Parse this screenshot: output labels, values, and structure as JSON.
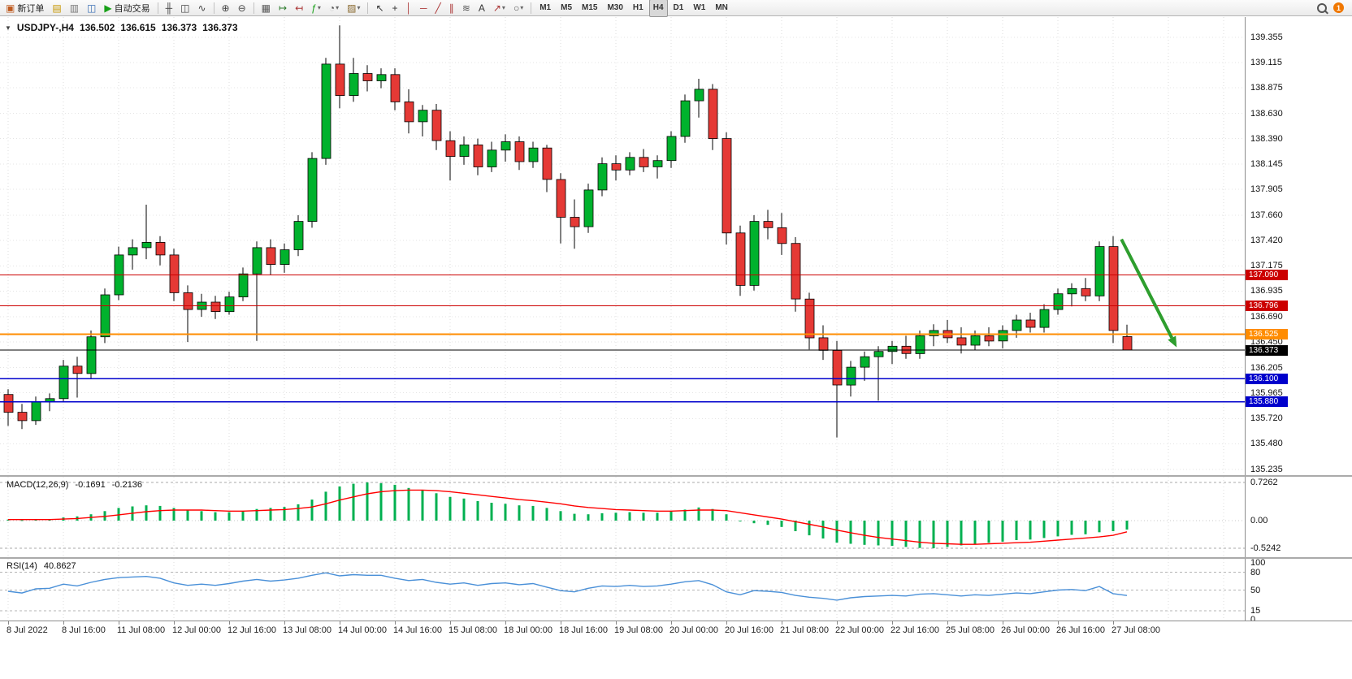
{
  "toolbar": {
    "notification_count": "1",
    "groups": [
      {
        "name": "standard",
        "items": [
          {
            "name": "new-order-button",
            "icon": "new-order-icon",
            "glyph": "▣",
            "color": "#bf5b20",
            "label": "新订单"
          },
          {
            "name": "chart-window-button",
            "icon": "chart-window-icon",
            "glyph": "▤",
            "color": "#c79600"
          },
          {
            "name": "profiles-button",
            "icon": "profiles-icon",
            "glyph": "▥",
            "color": "#7a7a7a"
          },
          {
            "name": "market-watch-button",
            "icon": "market-watch-icon",
            "glyph": "◫",
            "color": "#3b6fb5"
          },
          {
            "name": "auto-trading-button",
            "icon": "auto-trading-play-icon",
            "glyph": "▶",
            "color": "#18a018",
            "label": "自动交易"
          }
        ]
      },
      {
        "name": "chart-types",
        "items": [
          {
            "name": "bar-chart-button",
            "icon": "bar-chart-icon",
            "glyph": "╫",
            "color": "#444444"
          },
          {
            "name": "candlestick-chart-button",
            "icon": "candlestick-icon",
            "glyph": "◫",
            "color": "#444444"
          },
          {
            "name": "line-chart-button",
            "icon": "line-chart-icon",
            "glyph": "∿",
            "color": "#444444"
          }
        ]
      },
      {
        "name": "zoom",
        "items": [
          {
            "name": "zoom-in-button",
            "icon": "zoom-in-icon",
            "glyph": "⊕",
            "color": "#444444"
          },
          {
            "name": "zoom-out-button",
            "icon": "zoom-out-icon",
            "glyph": "⊖",
            "color": "#444444"
          }
        ]
      },
      {
        "name": "chart-tools",
        "items": [
          {
            "name": "tile-windows-button",
            "icon": "tile-windows-icon",
            "glyph": "▦",
            "color": "#555555"
          },
          {
            "name": "auto-scroll-button",
            "icon": "auto-scroll-icon",
            "glyph": "↦",
            "color": "#2a7a2a"
          },
          {
            "name": "chart-shift-button",
            "icon": "chart-shift-icon",
            "glyph": "↤",
            "color": "#aa3333"
          },
          {
            "name": "indicators-button",
            "icon": "indicators-icon",
            "glyph": "ƒ",
            "color": "#18a018",
            "dropdown": true
          },
          {
            "name": "periods-button",
            "icon": "periods-icon",
            "glyph": "◔",
            "color": "#555555",
            "dropdown": true
          },
          {
            "name": "templates-button",
            "icon": "templates-icon",
            "glyph": "▨",
            "color": "#8a6a30",
            "dropdown": true
          }
        ]
      },
      {
        "name": "drawing-tools",
        "items": [
          {
            "name": "cursor-button",
            "icon": "cursor-icon",
            "glyph": "↖",
            "color": "#333333"
          },
          {
            "name": "crosshair-button",
            "icon": "crosshair-icon",
            "glyph": "+",
            "color": "#333333"
          },
          {
            "name": "vertical-line-button",
            "icon": "vertical-line-icon",
            "glyph": "│",
            "color": "#aa3333"
          },
          {
            "name": "horizontal-line-button",
            "icon": "horizontal-line-icon",
            "glyph": "─",
            "color": "#aa3333"
          },
          {
            "name": "trendline-button",
            "icon": "trendline-icon",
            "glyph": "╱",
            "color": "#aa3333"
          },
          {
            "name": "channel-button",
            "icon": "channel-icon",
            "glyph": "∥",
            "color": "#aa3333"
          },
          {
            "name": "fibonacci-button",
            "icon": "fibonacci-icon",
            "glyph": "≋",
            "color": "#555555"
          },
          {
            "name": "text-button",
            "icon": "text-icon",
            "glyph": "A",
            "color": "#333333"
          },
          {
            "name": "arrows-button",
            "icon": "arrows-icon",
            "glyph": "↗",
            "color": "#aa3333",
            "dropdown": true
          },
          {
            "name": "shapes-button",
            "icon": "shapes-icon",
            "glyph": "○",
            "color": "#555555",
            "dropdown": true
          }
        ]
      },
      {
        "name": "timeframes",
        "items": [
          {
            "name": "timeframe-m1-button",
            "tf": true,
            "label": "M1"
          },
          {
            "name": "timeframe-m5-button",
            "tf": true,
            "label": "M5"
          },
          {
            "name": "timeframe-m15-button",
            "tf": true,
            "label": "M15"
          },
          {
            "name": "timeframe-m30-button",
            "tf": true,
            "label": "M30"
          },
          {
            "name": "timeframe-h1-button",
            "tf": true,
            "label": "H1"
          },
          {
            "name": "timeframe-h4-button",
            "tf": true,
            "label": "H4",
            "active": true
          },
          {
            "name": "timeframe-d1-button",
            "tf": true,
            "label": "D1"
          },
          {
            "name": "timeframe-w1-button",
            "tf": true,
            "label": "W1"
          },
          {
            "name": "timeframe-mn-button",
            "tf": true,
            "label": "MN"
          }
        ]
      }
    ]
  },
  "chart_header": {
    "collapse_icon": "▼",
    "symbol_period": "USDJPY-,H4",
    "open": "136.502",
    "high": "136.615",
    "low": "136.373",
    "close": "136.373"
  },
  "chart_data": {
    "type": "candlestick",
    "symbol": "USDJPY-",
    "timeframe": "H4",
    "grid": true,
    "ylim": [
      135.235,
      139.355
    ],
    "price_ticks": [
      139.355,
      139.115,
      138.875,
      138.63,
      138.39,
      138.145,
      137.905,
      137.66,
      137.42,
      137.175,
      136.935,
      136.69,
      136.45,
      136.205,
      135.965,
      135.72,
      135.48,
      135.235
    ],
    "time_labels": [
      "8 Jul 2022",
      "8 Jul 16:00",
      "11 Jul 08:00",
      "12 Jul 00:00",
      "12 Jul 16:00",
      "13 Jul 08:00",
      "14 Jul 00:00",
      "14 Jul 16:00",
      "15 Jul 08:00",
      "18 Jul 00:00",
      "18 Jul 16:00",
      "19 Jul 08:00",
      "20 Jul 00:00",
      "20 Jul 16:00",
      "21 Jul 08:00",
      "22 Jul 00:00",
      "22 Jul 16:00",
      "25 Jul 08:00",
      "26 Jul 00:00",
      "26 Jul 16:00",
      "27 Jul 08:00"
    ],
    "bars_per_label": 4,
    "colors": {
      "up": "#00b22d",
      "down": "#e53935",
      "wick": "#000000"
    },
    "ohlc": [
      [
        135.95,
        136.0,
        135.65,
        135.78
      ],
      [
        135.78,
        135.86,
        135.62,
        135.7
      ],
      [
        135.7,
        135.93,
        135.66,
        135.88
      ],
      [
        135.88,
        135.96,
        135.79,
        135.91
      ],
      [
        135.91,
        136.28,
        135.88,
        136.22
      ],
      [
        136.22,
        136.31,
        135.92,
        136.15
      ],
      [
        136.15,
        136.56,
        136.1,
        136.5
      ],
      [
        136.5,
        136.96,
        136.44,
        136.9
      ],
      [
        136.9,
        137.36,
        136.85,
        137.28
      ],
      [
        137.28,
        137.43,
        137.14,
        137.35
      ],
      [
        137.35,
        137.76,
        137.24,
        137.4
      ],
      [
        137.4,
        137.46,
        137.18,
        137.28
      ],
      [
        137.28,
        137.34,
        136.84,
        136.92
      ],
      [
        136.92,
        136.99,
        136.45,
        136.76
      ],
      [
        136.76,
        136.91,
        136.69,
        136.83
      ],
      [
        136.83,
        136.89,
        136.67,
        136.74
      ],
      [
        136.74,
        136.93,
        136.71,
        136.88
      ],
      [
        136.88,
        137.16,
        136.84,
        137.1
      ],
      [
        137.1,
        137.41,
        136.46,
        137.35
      ],
      [
        137.35,
        137.43,
        137.09,
        137.19
      ],
      [
        137.19,
        137.39,
        137.11,
        137.33
      ],
      [
        137.33,
        137.66,
        137.27,
        137.6
      ],
      [
        137.6,
        138.26,
        137.54,
        138.2
      ],
      [
        138.2,
        139.16,
        138.14,
        139.1
      ],
      [
        139.1,
        139.47,
        138.68,
        138.8
      ],
      [
        138.8,
        139.16,
        138.74,
        139.01
      ],
      [
        139.01,
        139.09,
        138.84,
        138.94
      ],
      [
        138.94,
        139.06,
        138.87,
        139.0
      ],
      [
        139.0,
        139.06,
        138.66,
        138.74
      ],
      [
        138.74,
        138.86,
        138.44,
        138.55
      ],
      [
        138.55,
        138.71,
        138.41,
        138.66
      ],
      [
        138.66,
        138.72,
        138.28,
        138.37
      ],
      [
        138.37,
        138.46,
        137.99,
        138.22
      ],
      [
        138.22,
        138.41,
        138.14,
        138.33
      ],
      [
        138.33,
        138.39,
        138.04,
        138.12
      ],
      [
        138.12,
        138.36,
        138.07,
        138.28
      ],
      [
        138.28,
        138.43,
        138.17,
        138.36
      ],
      [
        138.36,
        138.41,
        138.09,
        138.17
      ],
      [
        138.17,
        138.36,
        138.11,
        138.3
      ],
      [
        138.3,
        138.33,
        137.88,
        138.0
      ],
      [
        138.0,
        138.06,
        137.39,
        137.64
      ],
      [
        137.64,
        137.81,
        137.34,
        137.55
      ],
      [
        137.55,
        137.96,
        137.49,
        137.9
      ],
      [
        137.9,
        138.21,
        137.84,
        138.15
      ],
      [
        138.15,
        138.23,
        137.99,
        138.09
      ],
      [
        138.09,
        138.26,
        138.04,
        138.21
      ],
      [
        138.21,
        138.29,
        138.07,
        138.12
      ],
      [
        138.12,
        138.23,
        138.01,
        138.18
      ],
      [
        138.18,
        138.46,
        138.11,
        138.41
      ],
      [
        138.41,
        138.81,
        138.35,
        138.75
      ],
      [
        138.75,
        138.96,
        138.59,
        138.86
      ],
      [
        138.86,
        138.91,
        138.28,
        138.39
      ],
      [
        138.39,
        138.45,
        137.38,
        137.49
      ],
      [
        137.49,
        137.56,
        136.89,
        136.99
      ],
      [
        136.99,
        137.66,
        136.94,
        137.6
      ],
      [
        137.6,
        137.71,
        137.43,
        137.54
      ],
      [
        137.54,
        137.68,
        137.28,
        137.39
      ],
      [
        137.39,
        137.45,
        136.74,
        136.86
      ],
      [
        136.86,
        136.92,
        136.38,
        136.49
      ],
      [
        136.49,
        136.61,
        136.28,
        136.37
      ],
      [
        136.37,
        136.46,
        135.54,
        136.04
      ],
      [
        136.04,
        136.27,
        135.93,
        136.21
      ],
      [
        136.21,
        136.36,
        136.08,
        136.31
      ],
      [
        136.31,
        136.41,
        135.89,
        136.36
      ],
      [
        136.36,
        136.46,
        136.24,
        136.41
      ],
      [
        136.41,
        136.51,
        136.29,
        136.34
      ],
      [
        136.34,
        136.56,
        136.29,
        136.51
      ],
      [
        136.51,
        136.62,
        136.41,
        136.56
      ],
      [
        136.56,
        136.66,
        136.44,
        136.49
      ],
      [
        136.49,
        136.59,
        136.34,
        136.42
      ],
      [
        136.42,
        136.56,
        136.37,
        136.51
      ],
      [
        136.51,
        136.59,
        136.41,
        136.46
      ],
      [
        136.46,
        136.61,
        136.39,
        136.56
      ],
      [
        136.56,
        136.71,
        136.49,
        136.66
      ],
      [
        136.66,
        136.73,
        136.54,
        136.59
      ],
      [
        136.59,
        136.81,
        136.54,
        136.76
      ],
      [
        136.76,
        136.96,
        136.71,
        136.91
      ],
      [
        136.91,
        137.01,
        136.79,
        136.96
      ],
      [
        136.96,
        137.06,
        136.84,
        136.89
      ],
      [
        136.89,
        137.41,
        136.84,
        137.36
      ],
      [
        137.36,
        137.46,
        136.44,
        136.56
      ],
      [
        136.502,
        136.615,
        136.373,
        136.373
      ]
    ],
    "hlines": [
      {
        "label": "137.090",
        "price": 137.09,
        "color": "#cc0000",
        "width": 1.2
      },
      {
        "label": "136.796",
        "price": 136.796,
        "color": "#cc0000",
        "width": 1.2
      },
      {
        "label": "136.525",
        "price": 136.525,
        "color": "#ff8c00",
        "width": 1.8
      },
      {
        "label": "136.373",
        "price": 136.373,
        "color": "#000000",
        "width": 1,
        "current": true
      },
      {
        "label": "136.100",
        "price": 136.1,
        "color": "#0000cc",
        "width": 1.8
      },
      {
        "label": "135.880",
        "price": 135.88,
        "color": "#0000cc",
        "width": 1.8
      }
    ],
    "arrow": {
      "from_index": 80.6,
      "from_price": 137.43,
      "to_index": 84.6,
      "to_price": 136.4,
      "color": "#2e9e2e"
    }
  },
  "indicators": {
    "macd": {
      "label": "MACD(12,26,9)",
      "value": "-0.1691",
      "signal_value": "-0.2136",
      "axis_ticks": [
        "0.7262",
        "0.00",
        "-0.5242"
      ],
      "axis_values": [
        0.7262,
        0,
        -0.5242
      ],
      "hist_color": "#00b050",
      "signal_color": "#ff0000",
      "histogram": [
        0.02,
        0.01,
        0.02,
        0.03,
        0.06,
        0.08,
        0.12,
        0.18,
        0.24,
        0.27,
        0.29,
        0.28,
        0.24,
        0.2,
        0.18,
        0.16,
        0.16,
        0.18,
        0.22,
        0.24,
        0.26,
        0.31,
        0.4,
        0.55,
        0.65,
        0.7,
        0.726,
        0.71,
        0.68,
        0.62,
        0.58,
        0.52,
        0.45,
        0.42,
        0.37,
        0.34,
        0.32,
        0.29,
        0.28,
        0.24,
        0.18,
        0.13,
        0.12,
        0.14,
        0.15,
        0.16,
        0.15,
        0.15,
        0.17,
        0.21,
        0.25,
        0.22,
        0.12,
        0.0,
        -0.05,
        -0.08,
        -0.12,
        -0.2,
        -0.28,
        -0.34,
        -0.42,
        -0.44,
        -0.46,
        -0.47,
        -0.48,
        -0.5,
        -0.52,
        -0.524,
        -0.5,
        -0.47,
        -0.44,
        -0.42,
        -0.4,
        -0.37,
        -0.36,
        -0.33,
        -0.3,
        -0.27,
        -0.26,
        -0.22,
        -0.2,
        -0.1691
      ],
      "signal": [
        0.02,
        0.02,
        0.02,
        0.02,
        0.03,
        0.04,
        0.06,
        0.08,
        0.11,
        0.14,
        0.17,
        0.19,
        0.2,
        0.2,
        0.2,
        0.19,
        0.18,
        0.18,
        0.19,
        0.2,
        0.21,
        0.23,
        0.26,
        0.32,
        0.39,
        0.45,
        0.51,
        0.55,
        0.57,
        0.58,
        0.58,
        0.57,
        0.55,
        0.52,
        0.49,
        0.46,
        0.43,
        0.4,
        0.38,
        0.35,
        0.32,
        0.28,
        0.25,
        0.23,
        0.21,
        0.2,
        0.19,
        0.18,
        0.18,
        0.19,
        0.2,
        0.2,
        0.19,
        0.15,
        0.11,
        0.07,
        0.03,
        -0.02,
        -0.07,
        -0.12,
        -0.18,
        -0.23,
        -0.28,
        -0.32,
        -0.35,
        -0.38,
        -0.41,
        -0.43,
        -0.44,
        -0.45,
        -0.45,
        -0.44,
        -0.43,
        -0.42,
        -0.41,
        -0.39,
        -0.37,
        -0.35,
        -0.33,
        -0.31,
        -0.28,
        -0.2136
      ]
    },
    "rsi": {
      "label": "RSI(14)",
      "value": "40.8627",
      "axis_ticks": [
        "100",
        "80",
        "50",
        "15",
        "0"
      ],
      "axis_values": [
        100,
        80,
        50,
        15,
        0
      ],
      "levels": [
        80,
        50,
        15
      ],
      "color": "#4a90d8",
      "values": [
        48,
        45,
        52,
        53,
        60,
        57,
        63,
        68,
        71,
        72,
        73,
        70,
        62,
        58,
        60,
        58,
        61,
        65,
        68,
        65,
        67,
        70,
        75,
        79,
        74,
        76,
        75,
        75,
        70,
        66,
        68,
        63,
        60,
        62,
        58,
        61,
        62,
        59,
        61,
        55,
        49,
        47,
        53,
        57,
        56,
        58,
        56,
        57,
        60,
        64,
        66,
        59,
        47,
        42,
        49,
        48,
        46,
        41,
        38,
        36,
        33,
        37,
        39,
        40,
        41,
        40,
        43,
        44,
        42,
        40,
        42,
        41,
        43,
        45,
        44,
        47,
        50,
        51,
        49,
        56,
        44,
        40.8627
      ]
    }
  }
}
